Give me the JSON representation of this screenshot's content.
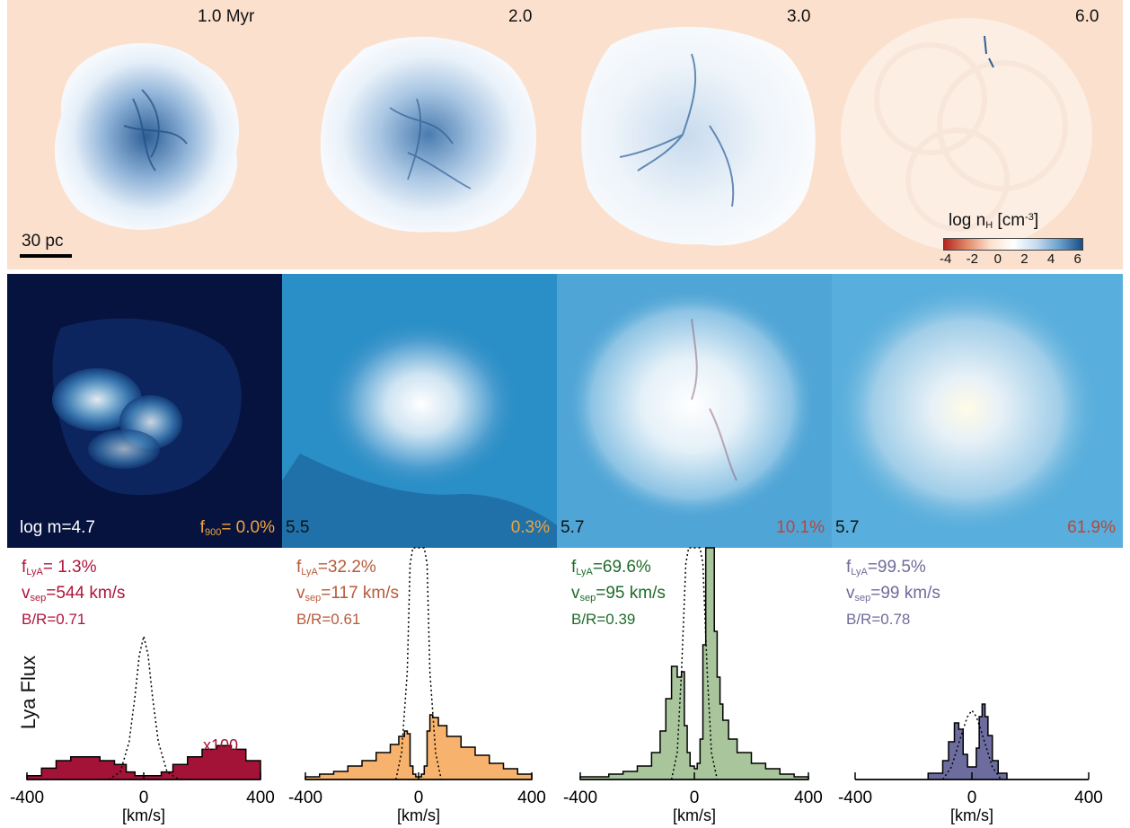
{
  "times": [
    "1.0 Myr",
    "2.0",
    "3.0",
    "6.0"
  ],
  "scale_bar_label": "30 pc",
  "colorbar": {
    "label_main": "log n",
    "label_sub": "H",
    "label_unit_pre": " [cm",
    "label_unit_sup": "-3",
    "label_unit_post": "]",
    "ticks": [
      "-4",
      "-2",
      "0",
      "2",
      "4",
      "6"
    ],
    "colors": [
      "#b2271f",
      "#e38a6a",
      "#fbe0cd",
      "#ffffff",
      "#c6dbef",
      "#6aa0cc",
      "#1a4e86"
    ]
  },
  "mass_labels": [
    "log m=4.7",
    "5.5",
    "5.7",
    "5.7"
  ],
  "f900": {
    "prefix": "f",
    "sub": "900",
    "values": [
      "= 0.0%",
      "0.3%",
      "10.1%",
      "61.9%"
    ],
    "colors": [
      "#f2a43a",
      "#f2a43a",
      "#b8473a",
      "#b8473a"
    ]
  },
  "stats": [
    {
      "flya": "= 1.3%",
      "vsep": "=544 km/s",
      "br": "B/R=0.71",
      "color": "#b0143d"
    },
    {
      "flya": "=32.2%",
      "vsep": "=117 km/s",
      "br": "B/R=0.61",
      "color": "#b85a3a"
    },
    {
      "flya": "=69.6%",
      "vsep": "=95 km/s",
      "br": "B/R=0.39",
      "color": "#1e6b2a"
    },
    {
      "flya": "=99.5%",
      "vsep": "=99 km/s",
      "br": "B/R=0.78",
      "color": "#6f6b9a"
    }
  ],
  "flya_prefix": "f",
  "flya_sub": "LyA",
  "vsep_prefix": "v",
  "vsep_sub": "sep",
  "ylabel": "Lya Flux",
  "x100_label": "x100",
  "xticks": [
    "-400",
    "0",
    "400"
  ],
  "xunit": "[km/s]",
  "chart_data": [
    {
      "type": "line",
      "xlim": [
        -400,
        400
      ],
      "xticks": [
        -400,
        0,
        400
      ],
      "xlabel": "[km/s]",
      "ylabel": "Lya Flux",
      "fill_color": "#a31237",
      "annotation": "x100",
      "series": [
        {
          "x": [
            -400,
            -350,
            -300,
            -250,
            -200,
            -150,
            -100,
            -60,
            -30,
            0,
            30,
            60,
            100,
            150,
            200,
            250,
            300,
            350,
            400
          ],
          "values": [
            0.01,
            0.03,
            0.05,
            0.06,
            0.06,
            0.05,
            0.04,
            0.02,
            0.01,
            0.01,
            0.01,
            0.02,
            0.04,
            0.06,
            0.08,
            0.09,
            0.08,
            0.05,
            0.02
          ]
        },
        {
          "x": [
            -120,
            -80,
            -50,
            -30,
            -15,
            0,
            15,
            30,
            50,
            80,
            120
          ],
          "values": [
            0.0,
            0.02,
            0.1,
            0.22,
            0.33,
            0.38,
            0.33,
            0.22,
            0.1,
            0.02,
            0.0
          ]
        }
      ]
    },
    {
      "type": "line",
      "xlim": [
        -400,
        400
      ],
      "xticks": [
        -400,
        0,
        400
      ],
      "xlabel": "[km/s]",
      "fill_color": "#f7b26e",
      "series": [
        {
          "x": [
            -400,
            -350,
            -300,
            -250,
            -200,
            -150,
            -100,
            -70,
            -50,
            -40,
            -30,
            -20,
            -10,
            0,
            10,
            20,
            30,
            40,
            50,
            70,
            100,
            150,
            200,
            250,
            300,
            350,
            400
          ],
          "values": [
            0.01,
            0.02,
            0.03,
            0.05,
            0.07,
            0.1,
            0.13,
            0.16,
            0.18,
            0.17,
            0.05,
            0.02,
            0.01,
            0.01,
            0.02,
            0.05,
            0.18,
            0.24,
            0.23,
            0.2,
            0.16,
            0.12,
            0.09,
            0.06,
            0.04,
            0.02,
            0.01
          ]
        },
        {
          "x": [
            -80,
            -60,
            -40,
            -30,
            -20,
            -10,
            0,
            10,
            20,
            30,
            40,
            60,
            80
          ],
          "values": [
            0.0,
            0.1,
            0.4,
            0.8,
            1.4,
            2.0,
            2.3,
            2.0,
            1.4,
            0.8,
            0.4,
            0.1,
            0.0
          ]
        }
      ]
    },
    {
      "type": "line",
      "xlim": [
        -400,
        400
      ],
      "xticks": [
        -400,
        0,
        400
      ],
      "xlabel": "[km/s]",
      "fill_color": "#a8c59c",
      "series": [
        {
          "x": [
            -400,
            -350,
            -300,
            -250,
            -200,
            -150,
            -120,
            -100,
            -80,
            -60,
            -45,
            -35,
            -25,
            -15,
            0,
            10,
            20,
            30,
            40,
            50,
            60,
            70,
            80,
            90,
            100,
            120,
            150,
            200,
            250,
            300,
            350,
            400
          ],
          "values": [
            0.01,
            0.01,
            0.02,
            0.03,
            0.05,
            0.1,
            0.18,
            0.3,
            0.42,
            0.38,
            0.4,
            0.2,
            0.1,
            0.05,
            0.04,
            0.06,
            0.15,
            0.5,
            1.05,
            1.3,
            0.9,
            0.55,
            0.38,
            0.28,
            0.22,
            0.15,
            0.1,
            0.06,
            0.04,
            0.02,
            0.01,
            0.01
          ]
        },
        {
          "x": [
            -80,
            -60,
            -45,
            -30,
            -20,
            -10,
            0,
            10,
            20,
            30,
            45,
            60,
            80
          ],
          "values": [
            0.0,
            0.1,
            0.4,
            0.8,
            1.3,
            1.8,
            2.1,
            1.8,
            1.3,
            0.8,
            0.4,
            0.1,
            0.0
          ]
        }
      ]
    },
    {
      "type": "line",
      "xlim": [
        -400,
        400
      ],
      "xticks": [
        -400,
        0,
        400
      ],
      "xlabel": "[km/s]",
      "fill_color": "#6c6d9e",
      "series": [
        {
          "x": [
            -400,
            -250,
            -150,
            -100,
            -80,
            -60,
            -45,
            -30,
            -15,
            0,
            15,
            25,
            35,
            45,
            55,
            70,
            90,
            120,
            150,
            250,
            400
          ],
          "values": [
            0.0,
            0.0,
            0.01,
            0.03,
            0.06,
            0.09,
            0.08,
            0.04,
            0.02,
            0.02,
            0.05,
            0.1,
            0.12,
            0.1,
            0.07,
            0.03,
            0.01,
            0.0,
            0.0,
            0.0,
            0.0
          ]
        },
        {
          "x": [
            -100,
            -70,
            -50,
            -30,
            -15,
            0,
            15,
            30,
            50,
            70,
            100
          ],
          "values": [
            0.0,
            0.02,
            0.05,
            0.08,
            0.1,
            0.11,
            0.1,
            0.08,
            0.05,
            0.02,
            0.0
          ]
        }
      ]
    }
  ]
}
